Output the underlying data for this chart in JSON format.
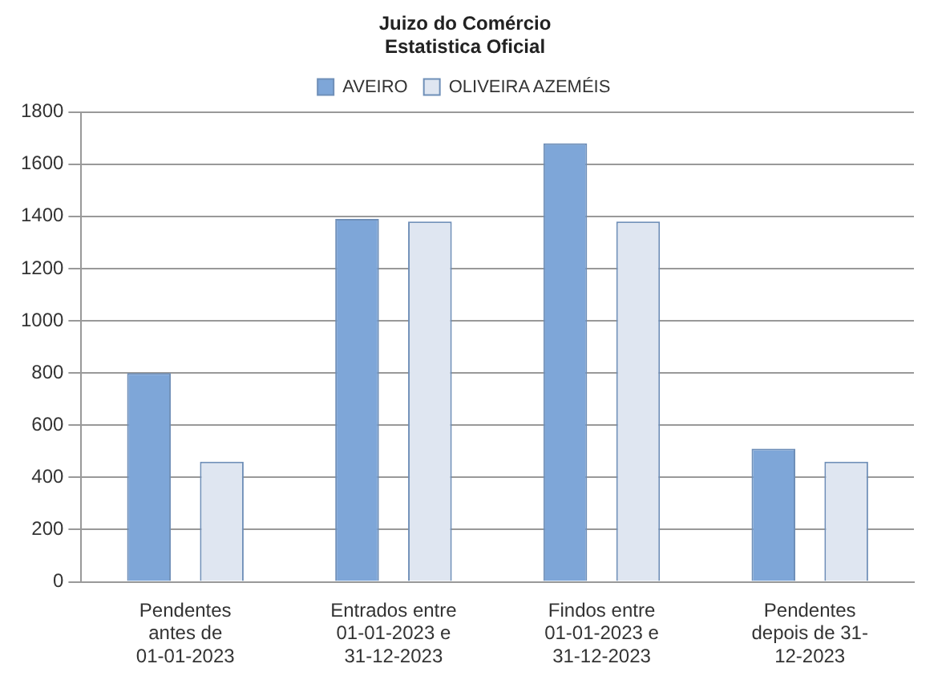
{
  "chart_data": {
    "type": "bar",
    "title": [
      "Juizo do Comércio",
      "Estatistica Oficial"
    ],
    "categories": [
      [
        "Pendentes",
        "antes de",
        "01-01-2023"
      ],
      [
        "Entrados entre",
        "01-01-2023 e",
        "31-12-2023"
      ],
      [
        "Findos entre",
        "01-01-2023 e",
        "31-12-2023"
      ],
      [
        "Pendentes",
        "depois de 31-",
        "12-2023"
      ]
    ],
    "series": [
      {
        "name": "AVEIRO",
        "color": "#7ea6d8",
        "values": [
          800,
          1390,
          1680,
          510
        ]
      },
      {
        "name": "OLIVEIRA AZEMÉIS",
        "color": "#dfe6f1",
        "values": [
          460,
          1380,
          1380,
          460
        ]
      }
    ],
    "ylim": [
      0,
      1800
    ],
    "yticks": [
      0,
      200,
      400,
      600,
      800,
      1000,
      1200,
      1400,
      1600,
      1800
    ],
    "grid": "y",
    "legend": "top"
  }
}
